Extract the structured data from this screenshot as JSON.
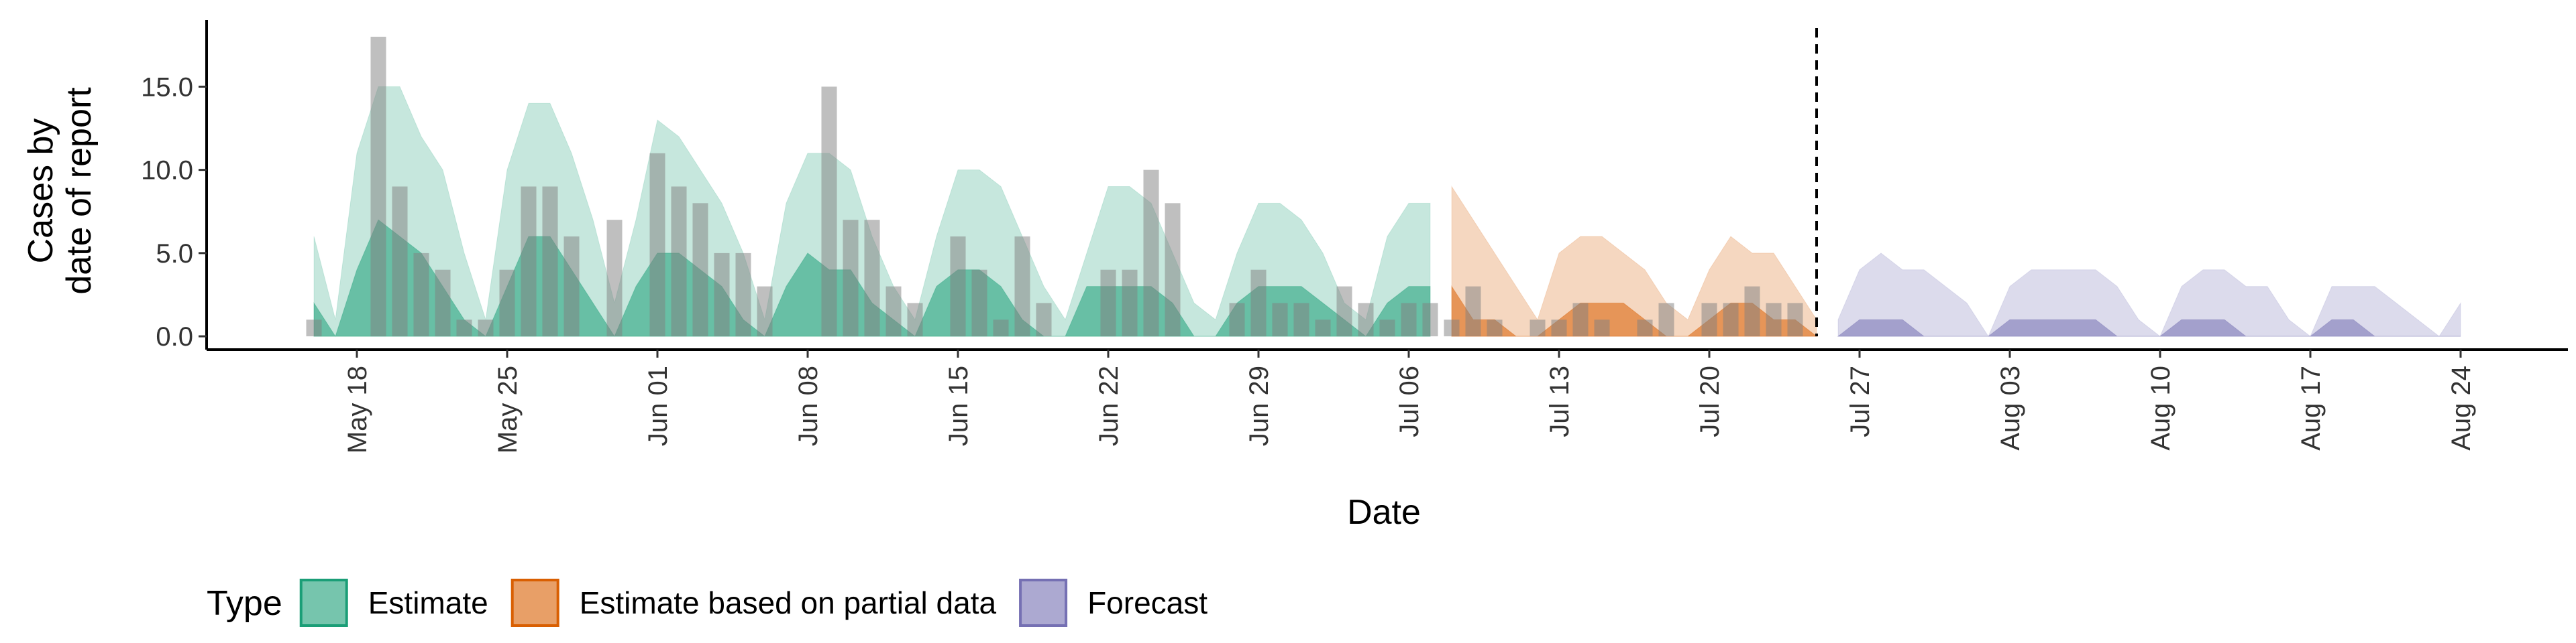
{
  "chart_data": {
    "type": "combo",
    "x_label": "Date",
    "y_label": [
      "Cases by",
      "date of report"
    ],
    "legend_title": "Type",
    "legend": "bottom",
    "x": [
      "May 16",
      "May 17",
      "May 18",
      "May 19",
      "May 20",
      "May 21",
      "May 22",
      "May 23",
      "May 24",
      "May 25",
      "May 26",
      "May 27",
      "May 28",
      "May 29",
      "May 30",
      "May 31",
      "Jun 01",
      "Jun 02",
      "Jun 03",
      "Jun 04",
      "Jun 05",
      "Jun 06",
      "Jun 07",
      "Jun 08",
      "Jun 09",
      "Jun 10",
      "Jun 11",
      "Jun 12",
      "Jun 13",
      "Jun 14",
      "Jun 15",
      "Jun 16",
      "Jun 17",
      "Jun 18",
      "Jun 19",
      "Jun 20",
      "Jun 21",
      "Jun 22",
      "Jun 23",
      "Jun 24",
      "Jun 25",
      "Jun 26",
      "Jun 27",
      "Jun 28",
      "Jun 29",
      "Jun 30",
      "Jul 01",
      "Jul 02",
      "Jul 03",
      "Jul 04",
      "Jul 05",
      "Jul 06",
      "Jul 07",
      "Jul 08",
      "Jul 09",
      "Jul 10",
      "Jul 11",
      "Jul 12",
      "Jul 13",
      "Jul 14",
      "Jul 15",
      "Jul 16",
      "Jul 17",
      "Jul 18",
      "Jul 19",
      "Jul 20",
      "Jul 21",
      "Jul 22",
      "Jul 23",
      "Jul 24",
      "Jul 25",
      "Jul 26",
      "Jul 27",
      "Jul 28",
      "Jul 29",
      "Jul 30",
      "Jul 31",
      "Aug 01",
      "Aug 02",
      "Aug 03",
      "Aug 04",
      "Aug 05",
      "Aug 06",
      "Aug 07",
      "Aug 08",
      "Aug 09",
      "Aug 10",
      "Aug 11",
      "Aug 12",
      "Aug 13",
      "Aug 14",
      "Aug 15",
      "Aug 16",
      "Aug 17",
      "Aug 18",
      "Aug 19",
      "Aug 20",
      "Aug 21",
      "Aug 22",
      "Aug 23",
      "Aug 24"
    ],
    "xlim": [
      "May 11",
      "Aug 29"
    ],
    "xticks": [
      "May 18",
      "May 25",
      "Jun 01",
      "Jun 08",
      "Jun 15",
      "Jun 22",
      "Jun 29",
      "Jul 06",
      "Jul 13",
      "Jul 20",
      "Jul 27",
      "Aug 03",
      "Aug 10",
      "Aug 17",
      "Aug 24"
    ],
    "ylim": [
      -0.8,
      19
    ],
    "yticks": [
      {
        "value": 0,
        "label": "0.0"
      },
      {
        "value": 5,
        "label": "5.0"
      },
      {
        "value": 10,
        "label": "10.0"
      },
      {
        "value": 15,
        "label": "15.0"
      }
    ],
    "vline": "Jul 25",
    "series": [
      {
        "type": "bar",
        "color": "#808080",
        "values": [
          1,
          0,
          0,
          18,
          9,
          5,
          4,
          1,
          1,
          4,
          9,
          9,
          6,
          0,
          7,
          0,
          11,
          9,
          8,
          5,
          5,
          3,
          0,
          0,
          15,
          7,
          7,
          3,
          2,
          0,
          6,
          4,
          1,
          6,
          2,
          0,
          0,
          4,
          4,
          10,
          8,
          0,
          0,
          2,
          4,
          2,
          2,
          1,
          3,
          2,
          1,
          2,
          2,
          1,
          3,
          1,
          0,
          1,
          1,
          2,
          1,
          0,
          1,
          2,
          0,
          2,
          2,
          3,
          2,
          2,
          null,
          null,
          null,
          null,
          null,
          null,
          null,
          null,
          null,
          null,
          null,
          null,
          null,
          null,
          null,
          null,
          null,
          null,
          null,
          null,
          null,
          null,
          null,
          null,
          null,
          null,
          null,
          null,
          null,
          null,
          null
        ]
      },
      {
        "type": "ribbon",
        "name": "Estimate",
        "color": "#1b9e77",
        "upper_90": [
          6,
          1,
          11,
          15,
          15,
          12,
          10,
          5,
          1,
          10,
          14,
          14,
          11,
          7,
          2,
          7,
          13,
          12,
          10,
          8,
          5,
          1,
          8,
          11,
          11,
          10,
          6,
          3,
          1,
          6,
          10,
          10,
          9,
          6,
          3,
          1,
          5,
          9,
          9,
          8,
          5,
          2,
          1,
          5,
          8,
          8,
          7,
          5,
          2,
          1,
          6,
          8,
          8,
          null,
          null,
          null,
          null,
          null,
          null,
          null,
          null,
          null,
          null,
          null,
          null,
          null,
          null,
          null,
          null,
          null,
          null,
          null,
          null,
          null,
          null,
          null,
          null,
          null,
          null,
          null,
          null,
          null,
          null,
          null,
          null,
          null,
          null,
          null,
          null,
          null,
          null,
          null,
          null,
          null,
          null,
          null,
          null,
          null,
          null,
          null,
          null
        ],
        "upper_50": [
          2,
          0,
          4,
          7,
          6,
          5,
          3,
          1,
          0,
          3,
          6,
          6,
          4,
          2,
          0,
          3,
          5,
          5,
          4,
          3,
          1,
          0,
          3,
          5,
          4,
          4,
          2,
          1,
          0,
          3,
          4,
          4,
          3,
          1,
          0,
          0,
          3,
          3,
          3,
          3,
          2,
          0,
          0,
          2,
          3,
          3,
          3,
          2,
          1,
          0,
          2,
          3,
          3,
          null,
          null,
          null,
          null,
          null,
          null,
          null,
          null,
          null,
          null,
          null,
          null,
          null,
          null,
          null,
          null,
          null,
          null,
          null,
          null,
          null,
          null,
          null,
          null,
          null,
          null,
          null,
          null,
          null,
          null,
          null,
          null,
          null,
          null,
          null,
          null,
          null,
          null,
          null,
          null,
          null,
          null,
          null,
          null,
          null,
          null,
          null,
          null
        ]
      },
      {
        "type": "ribbon",
        "name": "Estimate based on partial data",
        "color": "#d95f02",
        "upper_90": [
          null,
          null,
          null,
          null,
          null,
          null,
          null,
          null,
          null,
          null,
          null,
          null,
          null,
          null,
          null,
          null,
          null,
          null,
          null,
          null,
          null,
          null,
          null,
          null,
          null,
          null,
          null,
          null,
          null,
          null,
          null,
          null,
          null,
          null,
          null,
          null,
          null,
          null,
          null,
          null,
          null,
          null,
          null,
          null,
          null,
          null,
          null,
          null,
          null,
          null,
          null,
          null,
          null,
          9,
          7,
          5,
          3,
          1,
          5,
          6,
          6,
          5,
          4,
          2,
          1,
          4,
          6,
          5,
          5,
          3,
          1,
          null,
          null,
          null,
          null,
          null,
          null,
          null,
          null,
          null,
          null,
          null,
          null,
          null,
          null,
          null,
          null,
          null,
          null,
          null,
          null,
          null,
          null,
          null,
          null,
          null,
          null,
          null,
          null,
          null,
          null
        ],
        "upper_50": [
          null,
          null,
          null,
          null,
          null,
          null,
          null,
          null,
          null,
          null,
          null,
          null,
          null,
          null,
          null,
          null,
          null,
          null,
          null,
          null,
          null,
          null,
          null,
          null,
          null,
          null,
          null,
          null,
          null,
          null,
          null,
          null,
          null,
          null,
          null,
          null,
          null,
          null,
          null,
          null,
          null,
          null,
          null,
          null,
          null,
          null,
          null,
          null,
          null,
          null,
          null,
          null,
          null,
          3,
          1,
          1,
          0,
          0,
          1,
          2,
          2,
          2,
          1,
          0,
          0,
          1,
          2,
          2,
          1,
          1,
          0,
          null,
          null,
          null,
          null,
          null,
          null,
          null,
          null,
          null,
          null,
          null,
          null,
          null,
          null,
          null,
          null,
          null,
          null,
          null,
          null,
          null,
          null,
          null,
          null,
          null,
          null,
          null,
          null,
          null,
          null
        ]
      },
      {
        "type": "ribbon",
        "name": "Forecast",
        "color": "#7570b3",
        "upper_90": [
          null,
          null,
          null,
          null,
          null,
          null,
          null,
          null,
          null,
          null,
          null,
          null,
          null,
          null,
          null,
          null,
          null,
          null,
          null,
          null,
          null,
          null,
          null,
          null,
          null,
          null,
          null,
          null,
          null,
          null,
          null,
          null,
          null,
          null,
          null,
          null,
          null,
          null,
          null,
          null,
          null,
          null,
          null,
          null,
          null,
          null,
          null,
          null,
          null,
          null,
          null,
          null,
          null,
          null,
          null,
          null,
          null,
          null,
          null,
          null,
          null,
          null,
          null,
          null,
          null,
          null,
          null,
          null,
          null,
          null,
          null,
          1,
          4,
          5,
          4,
          4,
          3,
          2,
          0,
          3,
          4,
          4,
          4,
          4,
          3,
          1,
          0,
          3,
          4,
          4,
          3,
          3,
          1,
          0,
          3,
          3,
          3,
          2,
          1,
          0,
          2
        ],
        "upper_50": [
          null,
          null,
          null,
          null,
          null,
          null,
          null,
          null,
          null,
          null,
          null,
          null,
          null,
          null,
          null,
          null,
          null,
          null,
          null,
          null,
          null,
          null,
          null,
          null,
          null,
          null,
          null,
          null,
          null,
          null,
          null,
          null,
          null,
          null,
          null,
          null,
          null,
          null,
          null,
          null,
          null,
          null,
          null,
          null,
          null,
          null,
          null,
          null,
          null,
          null,
          null,
          null,
          null,
          null,
          null,
          null,
          null,
          null,
          null,
          null,
          null,
          null,
          null,
          null,
          null,
          null,
          null,
          null,
          null,
          null,
          null,
          0,
          1,
          1,
          1,
          0,
          0,
          0,
          0,
          1,
          1,
          1,
          1,
          1,
          0,
          0,
          0,
          1,
          1,
          1,
          0,
          0,
          0,
          0,
          1,
          1,
          0,
          0,
          0,
          0,
          0
        ]
      }
    ]
  }
}
